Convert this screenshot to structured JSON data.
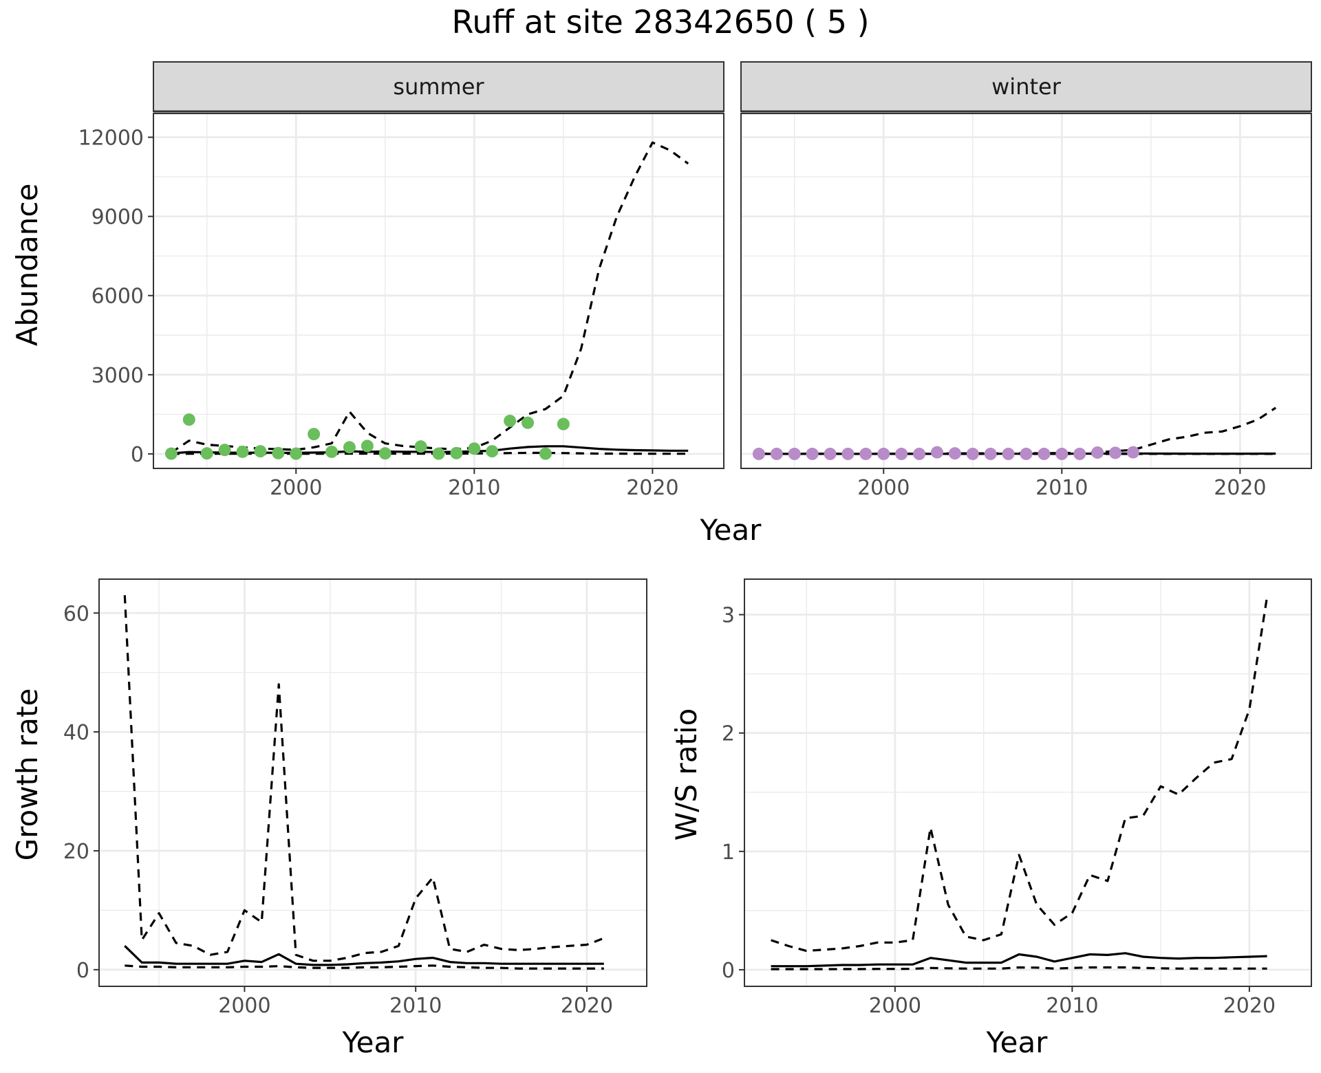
{
  "title": "Ruff at site 28342650 ( 5 )",
  "colors": {
    "summer_points": "#6ABE5B",
    "winter_points": "#B88BC9",
    "lines": "#000000",
    "strip_fill": "#D9D9D9",
    "grid": "#EBEBEB"
  },
  "chart_data": [
    {
      "id": "abundance",
      "type": "line",
      "facets": [
        "summer",
        "winter"
      ],
      "xlabel": "Year",
      "ylabel": "Abundance",
      "xlim": [
        1992,
        2024
      ],
      "ylim": [
        -550,
        12900
      ],
      "x_ticks": [
        2000,
        2010,
        2020
      ],
      "x_tick_labels": [
        "2000",
        "2010",
        "2020"
      ],
      "y_ticks": [
        0,
        3000,
        6000,
        9000,
        12000
      ],
      "y_tick_labels": [
        "0",
        "3000",
        "6000",
        "9000",
        "12000"
      ],
      "grid": true,
      "panels": [
        {
          "facet": "summer",
          "points": {
            "x": [
              1993,
              1994,
              1995,
              1996,
              1997,
              1998,
              1999,
              2000,
              2001,
              2002,
              2003,
              2004,
              2005,
              2007,
              2008,
              2009,
              2010,
              2011,
              2012,
              2013,
              2014,
              2015
            ],
            "y": [
              10,
              1300,
              20,
              150,
              80,
              100,
              30,
              10,
              750,
              80,
              250,
              300,
              20,
              280,
              10,
              30,
              200,
              100,
              1250,
              1180,
              10,
              1130
            ]
          },
          "series": [
            {
              "style": "solid",
              "x": [
                1993,
                1994,
                1995,
                1996,
                1997,
                1998,
                1999,
                2000,
                2001,
                2002,
                2003,
                2004,
                2005,
                2006,
                2007,
                2008,
                2009,
                2010,
                2011,
                2012,
                2013,
                2014,
                2015,
                2016,
                2017,
                2018,
                2019,
                2020,
                2021,
                2022
              ],
              "y": [
                20,
                70,
                60,
                50,
                40,
                50,
                40,
                40,
                50,
                60,
                100,
                80,
                90,
                80,
                80,
                70,
                80,
                100,
                120,
                200,
                260,
                290,
                290,
                240,
                190,
                160,
                140,
                130,
                120,
                120
              ]
            },
            {
              "style": "dashed",
              "x": [
                1993,
                1994,
                1995,
                1996,
                1997,
                1998,
                1999,
                2000,
                2001,
                2002,
                2003,
                2004,
                2005,
                2006,
                2007,
                2008,
                2009,
                2010,
                2011,
                2012,
                2013,
                2014,
                2015,
                2016,
                2017,
                2018,
                2019,
                2020,
                2021,
                2022
              ],
              "y": [
                50,
                500,
                350,
                300,
                250,
                200,
                180,
                150,
                250,
                400,
                1600,
                800,
                400,
                300,
                250,
                200,
                180,
                230,
                500,
                1000,
                1500,
                1700,
                2200,
                4000,
                7000,
                9000,
                10500,
                11800,
                11500,
                11000
              ]
            },
            {
              "style": "dashed",
              "x": [
                1993,
                1994,
                1995,
                1996,
                1997,
                1998,
                1999,
                2000,
                2001,
                2002,
                2003,
                2004,
                2005,
                2006,
                2007,
                2008,
                2009,
                2010,
                2011,
                2012,
                2013,
                2014,
                2015,
                2016,
                2017,
                2018,
                2019,
                2020,
                2021,
                2022
              ],
              "y": [
                0,
                5,
                5,
                5,
                5,
                5,
                5,
                5,
                5,
                5,
                10,
                10,
                10,
                10,
                10,
                10,
                10,
                15,
                20,
                30,
                40,
                40,
                30,
                20,
                10,
                10,
                5,
                5,
                5,
                5
              ]
            }
          ]
        },
        {
          "facet": "winter",
          "points": {
            "x": [
              1993,
              1994,
              1995,
              1996,
              1997,
              1998,
              1999,
              2000,
              2001,
              2002,
              2003,
              2004,
              2005,
              2006,
              2007,
              2008,
              2009,
              2010,
              2011,
              2012,
              2013,
              2014
            ],
            "y": [
              0,
              0,
              0,
              0,
              0,
              0,
              0,
              0,
              0,
              0,
              60,
              20,
              0,
              0,
              0,
              0,
              0,
              0,
              0,
              50,
              40,
              60
            ]
          },
          "series": [
            {
              "style": "solid",
              "x": [
                1993,
                1995,
                2000,
                2005,
                2010,
                2012,
                2014,
                2016,
                2018,
                2020,
                2022
              ],
              "y": [
                0,
                0,
                0,
                5,
                5,
                10,
                15,
                10,
                8,
                8,
                10
              ]
            },
            {
              "style": "dashed",
              "x": [
                1993,
                1995,
                2000,
                2002,
                2004,
                2006,
                2008,
                2010,
                2012,
                2014,
                2015,
                2016,
                2017,
                2018,
                2019,
                2020,
                2021,
                2022
              ],
              "y": [
                5,
                5,
                5,
                10,
                20,
                20,
                20,
                30,
                60,
                150,
                350,
                550,
                650,
                800,
                850,
                1050,
                1300,
                1750
              ]
            },
            {
              "style": "dashed",
              "x": [
                1993,
                2022
              ],
              "y": [
                0,
                0
              ]
            }
          ]
        }
      ]
    },
    {
      "id": "growth",
      "type": "line",
      "xlabel": "Year",
      "ylabel": "Growth rate",
      "xlim": [
        1991.5,
        2023.5
      ],
      "ylim": [
        -2.8,
        65.7
      ],
      "x_ticks": [
        2000,
        2010,
        2020
      ],
      "x_tick_labels": [
        "2000",
        "2010",
        "2020"
      ],
      "y_ticks": [
        0,
        20,
        40,
        60
      ],
      "y_tick_labels": [
        "0",
        "20",
        "40",
        "60"
      ],
      "grid": true,
      "series": [
        {
          "style": "solid",
          "x": [
            1993,
            1994,
            1995,
            1996,
            1997,
            1998,
            1999,
            2000,
            2001,
            2002,
            2003,
            2004,
            2005,
            2006,
            2007,
            2008,
            2009,
            2010,
            2011,
            2012,
            2013,
            2014,
            2015,
            2016,
            2017,
            2018,
            2019,
            2020,
            2021
          ],
          "y": [
            4,
            1.2,
            1.2,
            1,
            1,
            1,
            1,
            1.5,
            1.3,
            2.6,
            1,
            0.8,
            0.8,
            0.9,
            1.1,
            1.2,
            1.4,
            1.8,
            2,
            1.3,
            1.1,
            1.1,
            1,
            1,
            1,
            1,
            1,
            1,
            1
          ]
        },
        {
          "style": "dashed",
          "x": [
            1993,
            1994,
            1995,
            1996,
            1997,
            1998,
            1999,
            2000,
            2001,
            2002,
            2003,
            2004,
            2005,
            2006,
            2007,
            2008,
            2009,
            2010,
            2011,
            2012,
            2013,
            2014,
            2015,
            2016,
            2017,
            2018,
            2019,
            2020,
            2021
          ],
          "y": [
            63,
            5,
            9.5,
            4.5,
            4,
            2.5,
            3,
            10,
            8,
            48,
            2.5,
            1.5,
            1.5,
            2,
            2.8,
            3,
            4,
            12,
            15.5,
            3.5,
            3,
            4.2,
            3.5,
            3.3,
            3.5,
            3.8,
            4,
            4.2,
            5.3
          ]
        },
        {
          "style": "dashed",
          "x": [
            1993,
            1994,
            1995,
            1996,
            1997,
            1998,
            1999,
            2000,
            2001,
            2002,
            2003,
            2004,
            2005,
            2006,
            2007,
            2008,
            2009,
            2010,
            2011,
            2012,
            2013,
            2014,
            2015,
            2016,
            2017,
            2018,
            2019,
            2020,
            2021
          ],
          "y": [
            0.7,
            0.5,
            0.5,
            0.4,
            0.4,
            0.4,
            0.4,
            0.5,
            0.5,
            0.6,
            0.4,
            0.3,
            0.3,
            0.3,
            0.4,
            0.4,
            0.5,
            0.6,
            0.7,
            0.5,
            0.4,
            0.3,
            0.3,
            0.2,
            0.2,
            0.2,
            0.2,
            0.2,
            0.2
          ]
        }
      ]
    },
    {
      "id": "ws_ratio",
      "type": "line",
      "xlabel": "Year",
      "ylabel": "W/S ratio",
      "xlim": [
        1991.5,
        2023.5
      ],
      "ylim": [
        -0.14,
        3.3
      ],
      "x_ticks": [
        2000,
        2010,
        2020
      ],
      "x_tick_labels": [
        "2000",
        "2010",
        "2020"
      ],
      "y_ticks": [
        0,
        1,
        2,
        3
      ],
      "y_tick_labels": [
        "0",
        "1",
        "2",
        "3"
      ],
      "grid": true,
      "series": [
        {
          "style": "solid",
          "x": [
            1993,
            1994,
            1995,
            1996,
            1997,
            1998,
            1999,
            2000,
            2001,
            2002,
            2003,
            2004,
            2005,
            2006,
            2007,
            2008,
            2009,
            2010,
            2011,
            2012,
            2013,
            2014,
            2015,
            2016,
            2017,
            2018,
            2019,
            2020,
            2021
          ],
          "y": [
            0.03,
            0.03,
            0.03,
            0.035,
            0.04,
            0.04,
            0.045,
            0.045,
            0.045,
            0.1,
            0.08,
            0.06,
            0.06,
            0.06,
            0.13,
            0.11,
            0.07,
            0.1,
            0.13,
            0.125,
            0.14,
            0.11,
            0.1,
            0.095,
            0.1,
            0.1,
            0.105,
            0.11,
            0.115
          ]
        },
        {
          "style": "dashed",
          "x": [
            1993,
            1994,
            1995,
            1996,
            1997,
            1998,
            1999,
            2000,
            2001,
            2002,
            2003,
            2004,
            2005,
            2006,
            2007,
            2008,
            2009,
            2010,
            2011,
            2012,
            2013,
            2014,
            2015,
            2016,
            2017,
            2018,
            2019,
            2020,
            2021
          ],
          "y": [
            0.25,
            0.2,
            0.16,
            0.17,
            0.18,
            0.2,
            0.23,
            0.23,
            0.25,
            1.2,
            0.55,
            0.28,
            0.25,
            0.3,
            0.97,
            0.55,
            0.38,
            0.48,
            0.8,
            0.75,
            1.28,
            1.3,
            1.55,
            1.48,
            1.62,
            1.75,
            1.78,
            2.2,
            3.15
          ]
        },
        {
          "style": "dashed",
          "x": [
            1993,
            1994,
            1995,
            1996,
            1997,
            1998,
            1999,
            2000,
            2001,
            2002,
            2003,
            2004,
            2005,
            2006,
            2007,
            2008,
            2009,
            2010,
            2011,
            2012,
            2013,
            2014,
            2015,
            2016,
            2017,
            2018,
            2019,
            2020,
            2021
          ],
          "y": [
            0.005,
            0.005,
            0.005,
            0.005,
            0.006,
            0.006,
            0.007,
            0.007,
            0.008,
            0.015,
            0.012,
            0.01,
            0.01,
            0.01,
            0.02,
            0.018,
            0.01,
            0.015,
            0.02,
            0.02,
            0.02,
            0.015,
            0.012,
            0.01,
            0.01,
            0.01,
            0.01,
            0.01,
            0.01
          ]
        }
      ]
    }
  ]
}
